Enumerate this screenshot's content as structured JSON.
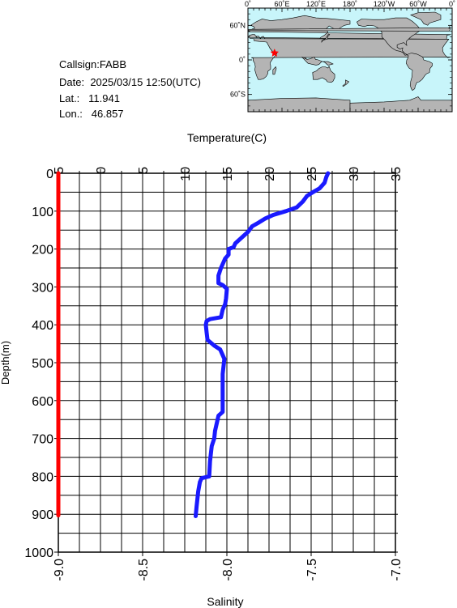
{
  "header": {
    "callsign_label": "Callsign:",
    "callsign": "FABB",
    "date_label": "Date:",
    "date": "2025/03/15 12:50(UTC)",
    "lat_label": "Lat.:",
    "lat": "11.941",
    "lon_label": "Lon.:",
    "lon": "46.857"
  },
  "map": {
    "lon_labels": [
      "0˚",
      "60˚E",
      "120˚E",
      "180˚",
      "120˚W",
      "60˚W",
      "0˚"
    ],
    "lat_labels": [
      "60˚N",
      "0˚",
      "60˚S"
    ],
    "ocean_color": "#c8f5fa",
    "land_color": "#b4b4b4",
    "marker_color": "#ff0000",
    "marker": {
      "lon": 46.857,
      "lat": 11.941
    }
  },
  "chart_data": {
    "type": "line",
    "top_axis_label": "Temperature(C)",
    "bottom_axis_label": "Salinity",
    "ylabel": "Depth(m)",
    "temperature_ticks": [
      "-5",
      "0",
      "5",
      "10",
      "15",
      "20",
      "25",
      "30",
      "35"
    ],
    "temperature_range": [
      -5,
      35
    ],
    "salinity_ticks": [
      "-9.0",
      "-8.5",
      "-8.0",
      "-7.5",
      "-7.0"
    ],
    "salinity_range": [
      -9.0,
      -7.0
    ],
    "depth_ticks": [
      "0",
      "100",
      "200",
      "300",
      "400",
      "500",
      "600",
      "700",
      "800",
      "900",
      "1000"
    ],
    "depth_range": [
      0,
      1000
    ],
    "series": [
      {
        "axis": "temperature",
        "color": "#1a1aff",
        "points": [
          [
            27.0,
            0
          ],
          [
            26.8,
            10
          ],
          [
            26.6,
            25
          ],
          [
            26.0,
            40
          ],
          [
            25.2,
            50
          ],
          [
            24.5,
            60
          ],
          [
            24.0,
            75
          ],
          [
            23.3,
            90
          ],
          [
            22.0,
            100
          ],
          [
            20.5,
            110
          ],
          [
            19.5,
            120
          ],
          [
            18.8,
            130
          ],
          [
            18.0,
            140
          ],
          [
            17.5,
            155
          ],
          [
            16.5,
            175
          ],
          [
            16.0,
            185
          ],
          [
            15.8,
            195
          ],
          [
            15.2,
            200
          ],
          [
            15.2,
            215
          ],
          [
            14.8,
            225
          ],
          [
            14.5,
            240
          ],
          [
            14.3,
            250
          ],
          [
            14.0,
            270
          ],
          [
            14.0,
            290
          ],
          [
            14.5,
            295
          ],
          [
            15.0,
            305
          ],
          [
            14.9,
            330
          ],
          [
            14.8,
            345
          ],
          [
            14.5,
            360
          ],
          [
            14.3,
            380
          ],
          [
            13.0,
            385
          ],
          [
            12.6,
            390
          ],
          [
            12.5,
            400
          ],
          [
            12.6,
            420
          ],
          [
            12.7,
            440
          ],
          [
            13.5,
            455
          ],
          [
            14.2,
            465
          ],
          [
            14.7,
            490
          ],
          [
            14.5,
            530
          ],
          [
            14.5,
            570
          ],
          [
            14.5,
            610
          ],
          [
            14.5,
            630
          ],
          [
            14.0,
            640
          ],
          [
            13.8,
            660
          ],
          [
            13.6,
            680
          ],
          [
            13.5,
            700
          ],
          [
            13.2,
            720
          ],
          [
            13.0,
            760
          ],
          [
            12.9,
            800
          ],
          [
            12.0,
            805
          ],
          [
            11.8,
            815
          ],
          [
            11.6,
            840
          ],
          [
            11.5,
            860
          ],
          [
            11.4,
            880
          ],
          [
            11.3,
            905
          ]
        ]
      },
      {
        "axis": "salinity",
        "color": "#ff0000",
        "points": [
          [
            -9.0,
            0
          ],
          [
            -9.0,
            903
          ]
        ]
      }
    ],
    "grid": true
  }
}
